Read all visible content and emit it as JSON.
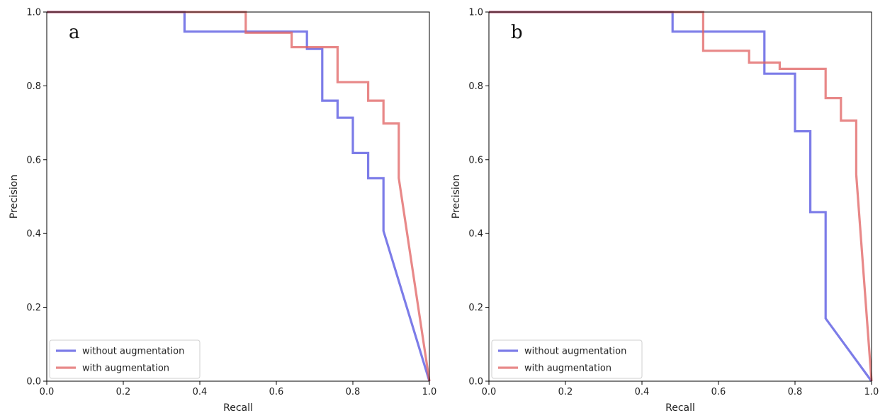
{
  "chart_data": [
    {
      "type": "line",
      "panel_label": "a",
      "xlabel": "Recall",
      "ylabel": "Precision",
      "xlim": [
        0.0,
        1.0
      ],
      "ylim": [
        0.0,
        1.0
      ],
      "x_ticks": [
        "0.0",
        "0.2",
        "0.4",
        "0.6",
        "0.8",
        "1.0"
      ],
      "y_ticks": [
        "0.0",
        "0.2",
        "0.4",
        "0.6",
        "0.8",
        "1.0"
      ],
      "grid": false,
      "legend_position": "lower-left",
      "series": [
        {
          "name": "without augmentation",
          "color": "#5050e0",
          "points": [
            [
              0.0,
              1.0
            ],
            [
              0.36,
              1.0
            ],
            [
              0.36,
              0.947
            ],
            [
              0.68,
              0.947
            ],
            [
              0.68,
              0.9
            ],
            [
              0.72,
              0.9
            ],
            [
              0.72,
              0.76
            ],
            [
              0.76,
              0.76
            ],
            [
              0.76,
              0.714
            ],
            [
              0.8,
              0.714
            ],
            [
              0.8,
              0.618
            ],
            [
              0.84,
              0.618
            ],
            [
              0.84,
              0.55
            ],
            [
              0.88,
              0.55
            ],
            [
              0.88,
              0.407
            ],
            [
              1.0,
              0.0
            ]
          ]
        },
        {
          "name": "with augmentation",
          "color": "#e06060",
          "points": [
            [
              0.0,
              1.0
            ],
            [
              0.52,
              1.0
            ],
            [
              0.52,
              0.944
            ],
            [
              0.64,
              0.944
            ],
            [
              0.64,
              0.905
            ],
            [
              0.76,
              0.905
            ],
            [
              0.76,
              0.81
            ],
            [
              0.84,
              0.81
            ],
            [
              0.84,
              0.76
            ],
            [
              0.88,
              0.76
            ],
            [
              0.88,
              0.698
            ],
            [
              0.92,
              0.698
            ],
            [
              0.92,
              0.55
            ],
            [
              1.0,
              0.0
            ]
          ]
        }
      ]
    },
    {
      "type": "line",
      "panel_label": "b",
      "xlabel": "Recall",
      "ylabel": "Precision",
      "xlim": [
        0.0,
        1.0
      ],
      "ylim": [
        0.0,
        1.0
      ],
      "x_ticks": [
        "0.0",
        "0.2",
        "0.4",
        "0.6",
        "0.8",
        "1.0"
      ],
      "y_ticks": [
        "0.0",
        "0.2",
        "0.4",
        "0.6",
        "0.8",
        "1.0"
      ],
      "grid": false,
      "legend_position": "lower-left",
      "series": [
        {
          "name": "without augmentation",
          "color": "#5050e0",
          "points": [
            [
              0.0,
              1.0
            ],
            [
              0.48,
              1.0
            ],
            [
              0.48,
              0.947
            ],
            [
              0.72,
              0.947
            ],
            [
              0.72,
              0.833
            ],
            [
              0.8,
              0.833
            ],
            [
              0.8,
              0.677
            ],
            [
              0.84,
              0.677
            ],
            [
              0.84,
              0.458
            ],
            [
              0.88,
              0.458
            ],
            [
              0.88,
              0.17
            ],
            [
              1.0,
              0.0
            ]
          ]
        },
        {
          "name": "with augmentation",
          "color": "#e06060",
          "points": [
            [
              0.0,
              1.0
            ],
            [
              0.56,
              1.0
            ],
            [
              0.56,
              0.895
            ],
            [
              0.68,
              0.895
            ],
            [
              0.68,
              0.863
            ],
            [
              0.76,
              0.863
            ],
            [
              0.76,
              0.846
            ],
            [
              0.88,
              0.846
            ],
            [
              0.88,
              0.767
            ],
            [
              0.92,
              0.767
            ],
            [
              0.92,
              0.706
            ],
            [
              0.96,
              0.706
            ],
            [
              0.96,
              0.56
            ],
            [
              1.0,
              0.0
            ]
          ]
        }
      ]
    }
  ]
}
